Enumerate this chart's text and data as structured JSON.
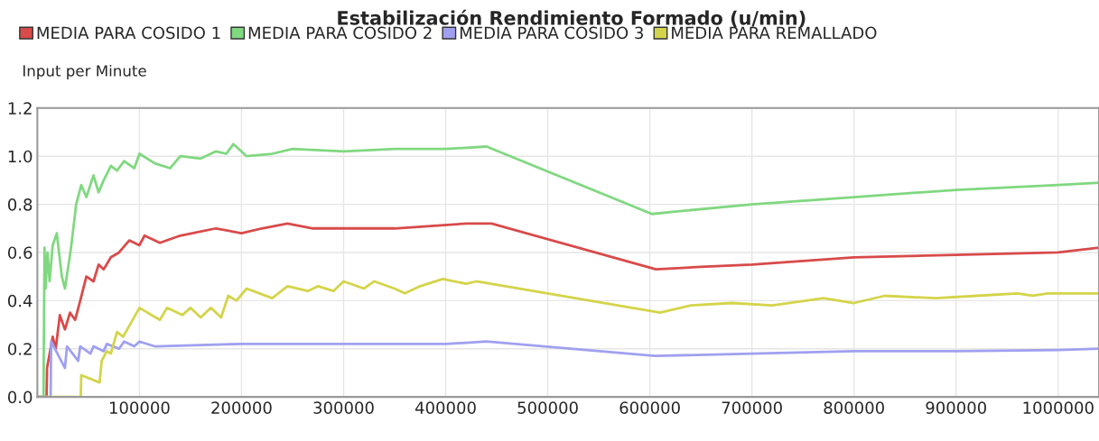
{
  "chart_data": {
    "type": "line",
    "title": "Estabilización Rendimiento Formado (u/min)",
    "ylabel": "Input per Minute",
    "xlim": [
      0,
      1040000
    ],
    "ylim": [
      0,
      1.2
    ],
    "xticks": [
      100000,
      200000,
      300000,
      400000,
      500000,
      600000,
      700000,
      800000,
      900000,
      1000000
    ],
    "yticks": [
      {
        "value": 0,
        "label": "0.0"
      },
      {
        "value": 0.2,
        "label": "0.2"
      },
      {
        "value": 0.4,
        "label": "0.4"
      },
      {
        "value": 0.6,
        "label": "0.6"
      },
      {
        "value": 0.8,
        "label": "0.8"
      },
      {
        "value": 1.0,
        "label": "1.0"
      },
      {
        "value": 1.2,
        "label": "1.2"
      }
    ],
    "grid": true,
    "legend": "top",
    "marker": "none",
    "line_style": "solid",
    "series": [
      {
        "name": "MEDIA PARA COSIDO 1",
        "color": "#d94a4a",
        "x": [
          0,
          9000,
          9500,
          15000,
          18000,
          22000,
          27000,
          32000,
          37000,
          42000,
          48000,
          55000,
          60000,
          65000,
          72000,
          80000,
          90000,
          100000,
          105000,
          120000,
          140000,
          175000,
          200000,
          220000,
          245000,
          270000,
          350000,
          420000,
          445000,
          606000,
          650000,
          700000,
          800000,
          900000,
          1000000,
          1040000
        ],
        "values": [
          0,
          0,
          0.12,
          0.25,
          0.2,
          0.34,
          0.28,
          0.35,
          0.32,
          0.4,
          0.5,
          0.48,
          0.55,
          0.53,
          0.58,
          0.6,
          0.65,
          0.63,
          0.67,
          0.64,
          0.67,
          0.7,
          0.68,
          0.7,
          0.72,
          0.7,
          0.7,
          0.72,
          0.72,
          0.53,
          0.54,
          0.55,
          0.58,
          0.59,
          0.6,
          0.62
        ]
      },
      {
        "name": "MEDIA PARA COSIDO 2",
        "color": "#80d880",
        "x": [
          0,
          6000,
          7000,
          8000,
          10000,
          12000,
          15000,
          19000,
          24000,
          27000,
          33000,
          38000,
          43000,
          48000,
          55000,
          60000,
          65000,
          72000,
          78000,
          85000,
          95000,
          100000,
          115000,
          130000,
          140000,
          160000,
          175000,
          185000,
          192000,
          205000,
          230000,
          250000,
          300000,
          350000,
          400000,
          440000,
          602000,
          625000,
          700000,
          800000,
          900000,
          1000000,
          1040000
        ],
        "values": [
          0,
          0,
          0.62,
          0.45,
          0.6,
          0.48,
          0.63,
          0.68,
          0.5,
          0.45,
          0.62,
          0.8,
          0.88,
          0.83,
          0.92,
          0.85,
          0.9,
          0.96,
          0.94,
          0.98,
          0.95,
          1.01,
          0.97,
          0.95,
          1.0,
          0.99,
          1.02,
          1.01,
          1.05,
          1.0,
          1.01,
          1.03,
          1.02,
          1.03,
          1.03,
          1.04,
          0.76,
          0.77,
          0.8,
          0.83,
          0.86,
          0.88,
          0.89
        ]
      },
      {
        "name": "MEDIA PARA COSIDO 3",
        "color": "#a0a0f0",
        "x": [
          0,
          13000,
          13500,
          27000,
          29000,
          40000,
          42000,
          52000,
          55000,
          65000,
          68000,
          80000,
          85000,
          95000,
          100000,
          115000,
          200000,
          300000,
          400000,
          440000,
          605000,
          700000,
          800000,
          900000,
          1000000,
          1040000
        ],
        "values": [
          0,
          0,
          0.23,
          0.12,
          0.21,
          0.15,
          0.21,
          0.18,
          0.21,
          0.19,
          0.22,
          0.2,
          0.23,
          0.21,
          0.23,
          0.21,
          0.22,
          0.22,
          0.22,
          0.23,
          0.17,
          0.18,
          0.19,
          0.19,
          0.195,
          0.2
        ]
      },
      {
        "name": "MEDIA PARA REMALLADO",
        "color": "#d4d44a",
        "x": [
          0,
          42500,
          43000,
          61000,
          63000,
          68000,
          72000,
          78000,
          84000,
          100000,
          120000,
          127000,
          142000,
          150000,
          160000,
          170000,
          180000,
          187000,
          195000,
          205000,
          230000,
          245000,
          265000,
          275000,
          290000,
          300000,
          320000,
          330000,
          350000,
          360000,
          375000,
          397000,
          420000,
          430000,
          610000,
          640000,
          680000,
          720000,
          770000,
          800000,
          830000,
          880000,
          920000,
          960000,
          975000,
          990000,
          1040000
        ],
        "values": [
          0,
          0,
          0.09,
          0.06,
          0.15,
          0.19,
          0.18,
          0.27,
          0.25,
          0.37,
          0.32,
          0.37,
          0.34,
          0.37,
          0.33,
          0.37,
          0.33,
          0.42,
          0.4,
          0.45,
          0.41,
          0.46,
          0.44,
          0.46,
          0.44,
          0.48,
          0.45,
          0.48,
          0.45,
          0.43,
          0.46,
          0.49,
          0.47,
          0.48,
          0.35,
          0.38,
          0.39,
          0.38,
          0.41,
          0.39,
          0.42,
          0.41,
          0.42,
          0.43,
          0.42,
          0.43,
          0.43
        ]
      }
    ]
  }
}
